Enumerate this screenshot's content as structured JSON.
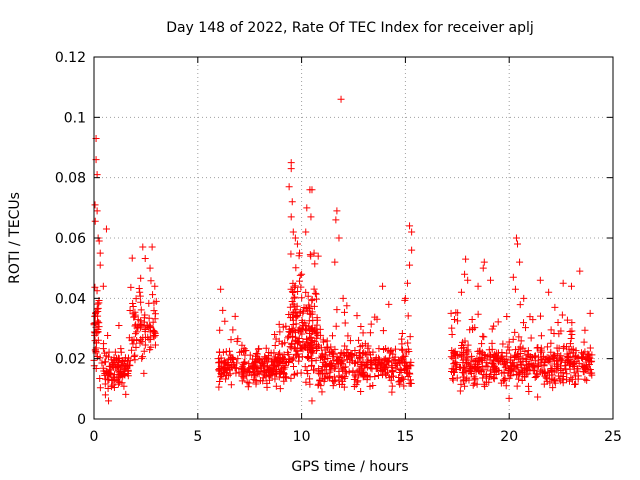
{
  "chart_data": {
    "type": "scatter",
    "title": "Day 148 of 2022, Rate Of TEC Index for receiver aplj",
    "xlabel": "GPS time / hours",
    "ylabel": "ROTI / TECUs",
    "xlim": [
      0,
      25
    ],
    "ylim": [
      0,
      0.12
    ],
    "xticks": [
      "0",
      "5",
      "10",
      "15",
      "20",
      "25"
    ],
    "yticks": [
      "0",
      "0.02",
      "0.04",
      "0.06",
      "0.08",
      "0.1",
      "0.12"
    ],
    "grid": true,
    "marker": "+",
    "color": "#ff0000",
    "segments": [
      {
        "x_start": 0.0,
        "x_end": 0.25,
        "baseline": 0.03,
        "spread": 0.014,
        "density": 40
      },
      {
        "x_start": 0.25,
        "x_end": 1.7,
        "baseline": 0.016,
        "spread": 0.006,
        "density": 110
      },
      {
        "x_start": 1.7,
        "x_end": 3.0,
        "baseline": 0.03,
        "spread": 0.01,
        "density": 90
      },
      {
        "x_start": 6.0,
        "x_end": 9.3,
        "baseline": 0.017,
        "spread": 0.006,
        "density": 260
      },
      {
        "x_start": 9.3,
        "x_end": 10.8,
        "baseline": 0.028,
        "spread": 0.014,
        "density": 200
      },
      {
        "x_start": 10.8,
        "x_end": 15.3,
        "baseline": 0.018,
        "spread": 0.007,
        "density": 340
      },
      {
        "x_start": 17.2,
        "x_end": 24.0,
        "baseline": 0.018,
        "spread": 0.007,
        "density": 520
      }
    ],
    "points": [
      {
        "x": 0.05,
        "y": 0.071
      },
      {
        "x": 0.1,
        "y": 0.093
      },
      {
        "x": 0.1,
        "y": 0.086
      },
      {
        "x": 0.15,
        "y": 0.081
      },
      {
        "x": 0.15,
        "y": 0.069
      },
      {
        "x": 0.2,
        "y": 0.06
      },
      {
        "x": 0.25,
        "y": 0.059
      },
      {
        "x": 0.3,
        "y": 0.055
      },
      {
        "x": 0.3,
        "y": 0.051
      },
      {
        "x": 0.6,
        "y": 0.063
      },
      {
        "x": 0.45,
        "y": 0.044
      },
      {
        "x": 0.05,
        "y": 0.026
      },
      {
        "x": 0.55,
        "y": 0.008
      },
      {
        "x": 0.7,
        "y": 0.006
      },
      {
        "x": 1.2,
        "y": 0.031
      },
      {
        "x": 2.35,
        "y": 0.057
      },
      {
        "x": 2.8,
        "y": 0.057
      },
      {
        "x": 2.7,
        "y": 0.05
      },
      {
        "x": 2.2,
        "y": 0.042
      },
      {
        "x": 3.0,
        "y": 0.039
      },
      {
        "x": 6.0,
        "y": 0.02
      },
      {
        "x": 6.1,
        "y": 0.043
      },
      {
        "x": 6.2,
        "y": 0.036
      },
      {
        "x": 6.8,
        "y": 0.034
      },
      {
        "x": 8.7,
        "y": 0.028
      },
      {
        "x": 9.5,
        "y": 0.085
      },
      {
        "x": 9.5,
        "y": 0.083
      },
      {
        "x": 9.4,
        "y": 0.077
      },
      {
        "x": 9.55,
        "y": 0.072
      },
      {
        "x": 9.5,
        "y": 0.067
      },
      {
        "x": 9.6,
        "y": 0.062
      },
      {
        "x": 9.7,
        "y": 0.06
      },
      {
        "x": 9.8,
        "y": 0.058
      },
      {
        "x": 9.9,
        "y": 0.055
      },
      {
        "x": 10.0,
        "y": 0.048
      },
      {
        "x": 10.2,
        "y": 0.062
      },
      {
        "x": 10.25,
        "y": 0.07
      },
      {
        "x": 10.4,
        "y": 0.076
      },
      {
        "x": 10.5,
        "y": 0.076
      },
      {
        "x": 10.45,
        "y": 0.067
      },
      {
        "x": 10.6,
        "y": 0.055
      },
      {
        "x": 10.8,
        "y": 0.054
      },
      {
        "x": 10.5,
        "y": 0.006
      },
      {
        "x": 11.7,
        "y": 0.069
      },
      {
        "x": 11.65,
        "y": 0.066
      },
      {
        "x": 11.8,
        "y": 0.06
      },
      {
        "x": 11.6,
        "y": 0.052
      },
      {
        "x": 11.9,
        "y": 0.106
      },
      {
        "x": 12.0,
        "y": 0.04
      },
      {
        "x": 13.9,
        "y": 0.044
      },
      {
        "x": 14.2,
        "y": 0.038
      },
      {
        "x": 15.2,
        "y": 0.064
      },
      {
        "x": 15.3,
        "y": 0.062
      },
      {
        "x": 15.3,
        "y": 0.056
      },
      {
        "x": 15.2,
        "y": 0.051
      },
      {
        "x": 15.1,
        "y": 0.045
      },
      {
        "x": 15.0,
        "y": 0.04
      },
      {
        "x": 17.2,
        "y": 0.035
      },
      {
        "x": 17.25,
        "y": 0.028
      },
      {
        "x": 17.9,
        "y": 0.053
      },
      {
        "x": 17.85,
        "y": 0.048
      },
      {
        "x": 18.0,
        "y": 0.046
      },
      {
        "x": 17.7,
        "y": 0.042
      },
      {
        "x": 18.5,
        "y": 0.044
      },
      {
        "x": 18.8,
        "y": 0.052
      },
      {
        "x": 18.75,
        "y": 0.05
      },
      {
        "x": 19.1,
        "y": 0.046
      },
      {
        "x": 20.2,
        "y": 0.047
      },
      {
        "x": 20.35,
        "y": 0.06
      },
      {
        "x": 20.4,
        "y": 0.058
      },
      {
        "x": 20.5,
        "y": 0.052
      },
      {
        "x": 20.3,
        "y": 0.043
      },
      {
        "x": 20.7,
        "y": 0.04
      },
      {
        "x": 21.5,
        "y": 0.046
      },
      {
        "x": 21.9,
        "y": 0.042
      },
      {
        "x": 22.6,
        "y": 0.045
      },
      {
        "x": 23.0,
        "y": 0.044
      },
      {
        "x": 23.4,
        "y": 0.049
      },
      {
        "x": 22.2,
        "y": 0.037
      },
      {
        "x": 23.9,
        "y": 0.035
      }
    ]
  }
}
